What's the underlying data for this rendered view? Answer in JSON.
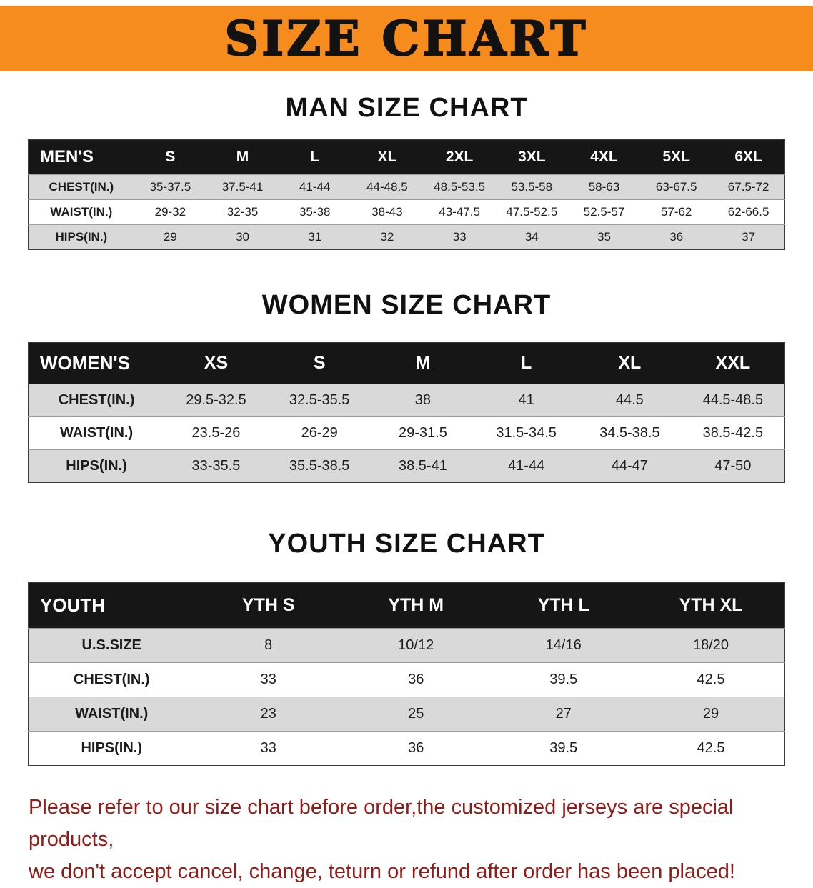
{
  "banner": {
    "title": "SIZE CHART",
    "bg_color": "#F68B1E",
    "text_color": "#121212"
  },
  "sections": [
    {
      "heading": "MAN SIZE CHART",
      "table": {
        "header": [
          "MEN'S",
          "S",
          "M",
          "L",
          "XL",
          "2XL",
          "3XL",
          "4XL",
          "5XL",
          "6XL"
        ],
        "rows": [
          {
            "label": "CHEST(IN.)",
            "values": [
              "35-37.5",
              "37.5-41",
              "41-44",
              "44-48.5",
              "48.5-53.5",
              "53.5-58",
              "58-63",
              "63-67.5",
              "67.5-72"
            ]
          },
          {
            "label": "WAIST(IN.)",
            "values": [
              "29-32",
              "32-35",
              "35-38",
              "38-43",
              "43-47.5",
              "47.5-52.5",
              "52.5-57",
              "57-62",
              "62-66.5"
            ]
          },
          {
            "label": "HIPS(IN.)",
            "values": [
              "29",
              "30",
              "31",
              "32",
              "33",
              "34",
              "35",
              "36",
              "37"
            ]
          }
        ]
      }
    },
    {
      "heading": "WOMEN SIZE CHART",
      "table": {
        "header": [
          "WOMEN'S",
          "XS",
          "S",
          "M",
          "L",
          "XL",
          "XXL"
        ],
        "rows": [
          {
            "label": "CHEST(IN.)",
            "values": [
              "29.5-32.5",
              "32.5-35.5",
              "38",
              "41",
              "44.5",
              "44.5-48.5"
            ]
          },
          {
            "label": "WAIST(IN.)",
            "values": [
              "23.5-26",
              "26-29",
              "29-31.5",
              "31.5-34.5",
              "34.5-38.5",
              "38.5-42.5"
            ]
          },
          {
            "label": "HIPS(IN.)",
            "values": [
              "33-35.5",
              "35.5-38.5",
              "38.5-41",
              "41-44",
              "44-47",
              "47-50"
            ]
          }
        ]
      }
    },
    {
      "heading": "YOUTH SIZE CHART",
      "table": {
        "header": [
          "YOUTH",
          "YTH S",
          "YTH M",
          "YTH L",
          "YTH XL"
        ],
        "rows": [
          {
            "label": "U.S.SIZE",
            "values": [
              "8",
              "10/12",
              "14/16",
              "18/20"
            ]
          },
          {
            "label": "CHEST(IN.)",
            "values": [
              "33",
              "36",
              "39.5",
              "42.5"
            ]
          },
          {
            "label": "WAIST(IN.)",
            "values": [
              "23",
              "25",
              "27",
              "29"
            ]
          },
          {
            "label": "HIPS(IN.)",
            "values": [
              "33",
              "36",
              "39.5",
              "42.5"
            ]
          }
        ]
      }
    }
  ],
  "footer": {
    "line1": "Please refer to our size chart before order,the customized jerseys are special products,",
    "line2": "we don't accept cancel, change, teturn or refund after order has been placed!",
    "text_color": "#931A16"
  }
}
